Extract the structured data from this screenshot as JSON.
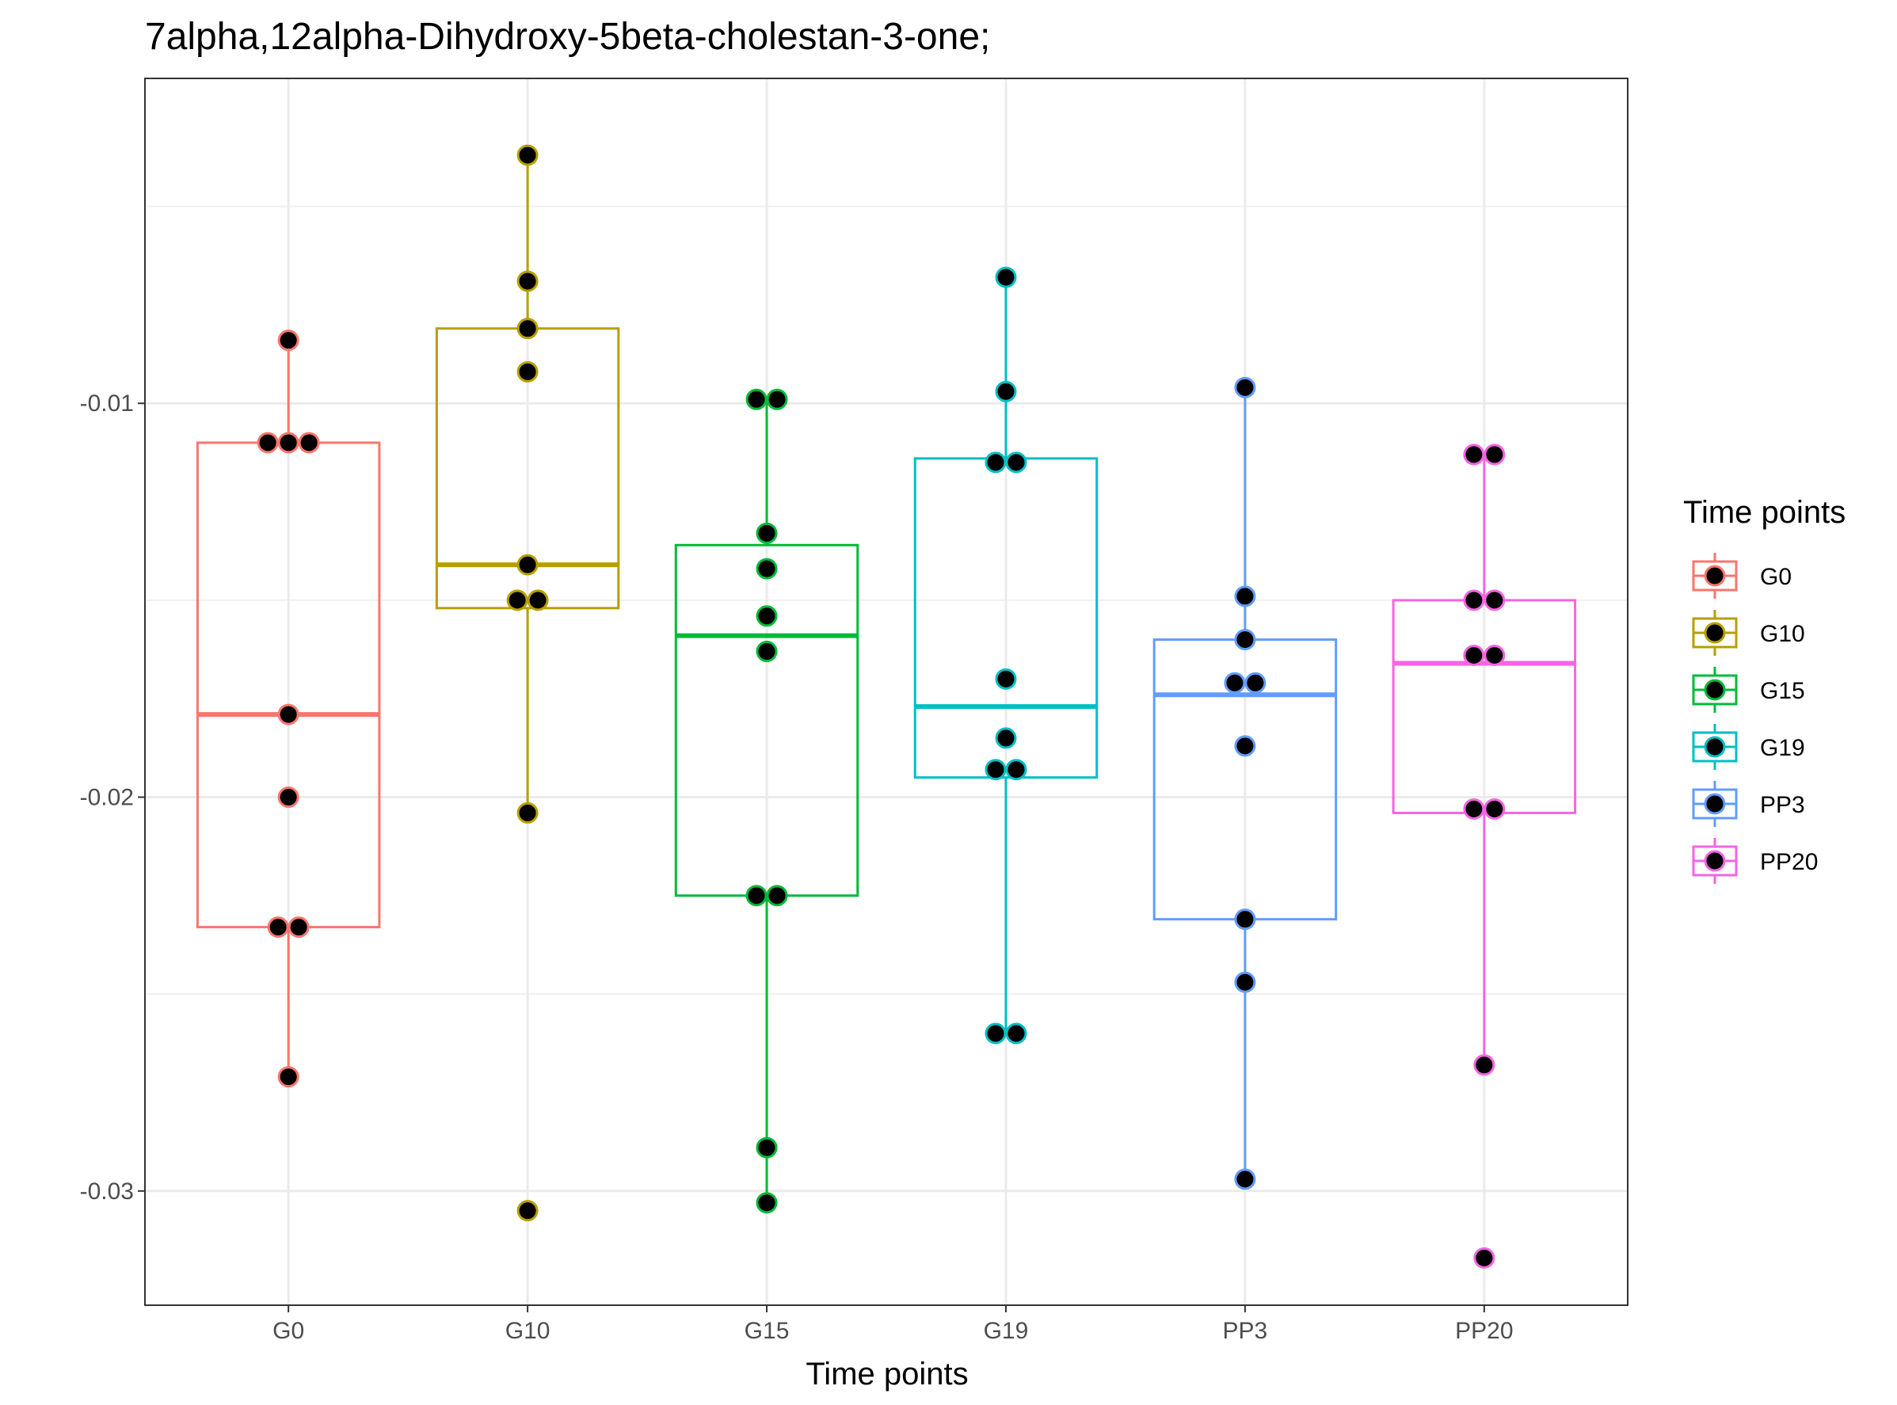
{
  "chart_data": {
    "type": "box",
    "title": "7alpha,12alpha-Dihydroxy-5beta-cholestan-3-one;",
    "xlabel": "Time points",
    "ylabel": "",
    "categories": [
      "G0",
      "G10",
      "G15",
      "G19",
      "PP3",
      "PP20"
    ],
    "ylim": [
      -0.0329,
      -0.00175
    ],
    "yticks": [
      -0.01,
      -0.02,
      -0.03
    ],
    "ytick_labels": [
      "-0.01",
      "-0.02",
      "-0.03"
    ],
    "grid": true,
    "legend": {
      "title": "Time points",
      "position": "right",
      "entries": [
        "G0",
        "G10",
        "G15",
        "G19",
        "PP3",
        "PP20"
      ]
    },
    "colors": {
      "G0": "#F8766D",
      "G10": "#B79F00",
      "G15": "#00BA38",
      "G19": "#00BFC4",
      "PP3": "#619CFF",
      "PP20": "#F564E3"
    },
    "series": [
      {
        "name": "G0",
        "min": -0.0271,
        "q1": -0.0233,
        "median": -0.0179,
        "q3": -0.011,
        "max": -0.0084,
        "points": [
          -0.0084,
          -0.011,
          -0.011,
          -0.011,
          -0.0179,
          -0.02,
          -0.0233,
          -0.0233,
          -0.0271
        ]
      },
      {
        "name": "G10",
        "min": -0.0204,
        "q1": -0.0152,
        "median": -0.0141,
        "q3": -0.0081,
        "max": -0.0037,
        "points": [
          -0.0037,
          -0.0069,
          -0.0081,
          -0.0092,
          -0.0141,
          -0.015,
          -0.015,
          -0.0204,
          -0.0305
        ]
      },
      {
        "name": "G15",
        "min": -0.0303,
        "q1": -0.0225,
        "median": -0.0159,
        "q3": -0.0136,
        "max": -0.0099,
        "points": [
          -0.0099,
          -0.0099,
          -0.0133,
          -0.0142,
          -0.0154,
          -0.0163,
          -0.0225,
          -0.0225,
          -0.0289,
          -0.0303
        ]
      },
      {
        "name": "G19",
        "min": -0.026,
        "q1": -0.0195,
        "median": -0.0177,
        "q3": -0.0114,
        "max": -0.0068,
        "points": [
          -0.0068,
          -0.0097,
          -0.0115,
          -0.0115,
          -0.017,
          -0.0185,
          -0.0193,
          -0.0193,
          -0.026,
          -0.026
        ]
      },
      {
        "name": "PP3",
        "min": -0.0297,
        "q1": -0.0231,
        "median": -0.0174,
        "q3": -0.016,
        "max": -0.0096,
        "points": [
          -0.0096,
          -0.0149,
          -0.016,
          -0.0171,
          -0.0171,
          -0.0187,
          -0.0231,
          -0.0247,
          -0.0297
        ]
      },
      {
        "name": "PP20",
        "min": -0.0268,
        "q1": -0.0204,
        "median": -0.0166,
        "q3": -0.015,
        "max": -0.0113,
        "points": [
          -0.0113,
          -0.0113,
          -0.015,
          -0.015,
          -0.0164,
          -0.0164,
          -0.0203,
          -0.0203,
          -0.0268,
          -0.0317
        ]
      }
    ]
  }
}
